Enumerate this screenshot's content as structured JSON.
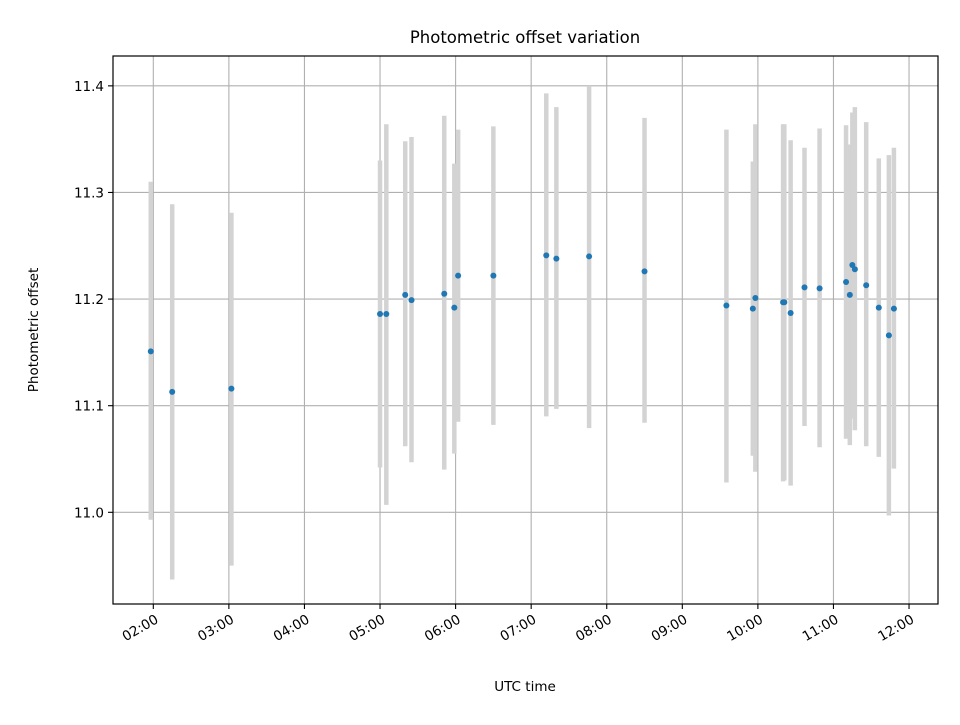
{
  "chart_data": {
    "type": "scatter",
    "title": "Photometric offset variation",
    "xlabel": "UTC time",
    "ylabel": "Photometric offset",
    "x_ticks": [
      "02:00",
      "03:00",
      "04:00",
      "05:00",
      "06:00",
      "07:00",
      "08:00",
      "09:00",
      "10:00",
      "11:00",
      "12:00"
    ],
    "y_ticks": [
      "11.0",
      "11.1",
      "11.2",
      "11.3",
      "11.4"
    ],
    "xlim": [
      "01:28",
      "12:23"
    ],
    "ylim": [
      10.914,
      11.428
    ],
    "grid": true,
    "colors": {
      "point": "#1f77b4",
      "errorbar": "#d3d3d3",
      "grid": "#b0b0b0"
    },
    "points": [
      {
        "x": "01:58",
        "y": 11.151,
        "err_lo": 10.993,
        "err_hi": 11.31
      },
      {
        "x": "02:15",
        "y": 11.113,
        "err_lo": 10.937,
        "err_hi": 11.289
      },
      {
        "x": "03:02",
        "y": 11.116,
        "err_lo": 10.95,
        "err_hi": 11.281
      },
      {
        "x": "05:00",
        "y": 11.186,
        "err_lo": 11.042,
        "err_hi": 11.33
      },
      {
        "x": "05:05",
        "y": 11.186,
        "err_lo": 11.007,
        "err_hi": 11.364
      },
      {
        "x": "05:20",
        "y": 11.204,
        "err_lo": 11.062,
        "err_hi": 11.348
      },
      {
        "x": "05:25",
        "y": 11.199,
        "err_lo": 11.047,
        "err_hi": 11.352
      },
      {
        "x": "05:51",
        "y": 11.205,
        "err_lo": 11.04,
        "err_hi": 11.372
      },
      {
        "x": "05:59",
        "y": 11.192,
        "err_lo": 11.055,
        "err_hi": 11.327
      },
      {
        "x": "06:02",
        "y": 11.222,
        "err_lo": 11.085,
        "err_hi": 11.359
      },
      {
        "x": "06:30",
        "y": 11.222,
        "err_lo": 11.082,
        "err_hi": 11.362
      },
      {
        "x": "07:12",
        "y": 11.241,
        "err_lo": 11.09,
        "err_hi": 11.393
      },
      {
        "x": "07:20",
        "y": 11.238,
        "err_lo": 11.097,
        "err_hi": 11.38
      },
      {
        "x": "07:46",
        "y": 11.24,
        "err_lo": 11.079,
        "err_hi": 11.4
      },
      {
        "x": "08:30",
        "y": 11.226,
        "err_lo": 11.084,
        "err_hi": 11.37
      },
      {
        "x": "09:35",
        "y": 11.194,
        "err_lo": 11.028,
        "err_hi": 11.359
      },
      {
        "x": "09:56",
        "y": 11.191,
        "err_lo": 11.053,
        "err_hi": 11.329
      },
      {
        "x": "09:58",
        "y": 11.201,
        "err_lo": 11.038,
        "err_hi": 11.364
      },
      {
        "x": "10:20",
        "y": 11.197,
        "err_lo": 11.029,
        "err_hi": 11.364
      },
      {
        "x": "10:21",
        "y": 11.197,
        "err_lo": 11.03,
        "err_hi": 11.364
      },
      {
        "x": "10:26",
        "y": 11.187,
        "err_lo": 11.025,
        "err_hi": 11.349
      },
      {
        "x": "10:37",
        "y": 11.211,
        "err_lo": 11.081,
        "err_hi": 11.342
      },
      {
        "x": "10:49",
        "y": 11.21,
        "err_lo": 11.061,
        "err_hi": 11.36
      },
      {
        "x": "11:10",
        "y": 11.216,
        "err_lo": 11.069,
        "err_hi": 11.363
      },
      {
        "x": "11:13",
        "y": 11.204,
        "err_lo": 11.063,
        "err_hi": 11.345
      },
      {
        "x": "11:15",
        "y": 11.232,
        "err_lo": 11.088,
        "err_hi": 11.375
      },
      {
        "x": "11:17",
        "y": 11.228,
        "err_lo": 11.077,
        "err_hi": 11.38
      },
      {
        "x": "11:26",
        "y": 11.213,
        "err_lo": 11.062,
        "err_hi": 11.366
      },
      {
        "x": "11:36",
        "y": 11.192,
        "err_lo": 11.052,
        "err_hi": 11.332
      },
      {
        "x": "11:44",
        "y": 11.166,
        "err_lo": 10.997,
        "err_hi": 11.335
      },
      {
        "x": "11:48",
        "y": 11.191,
        "err_lo": 11.041,
        "err_hi": 11.342
      }
    ]
  }
}
